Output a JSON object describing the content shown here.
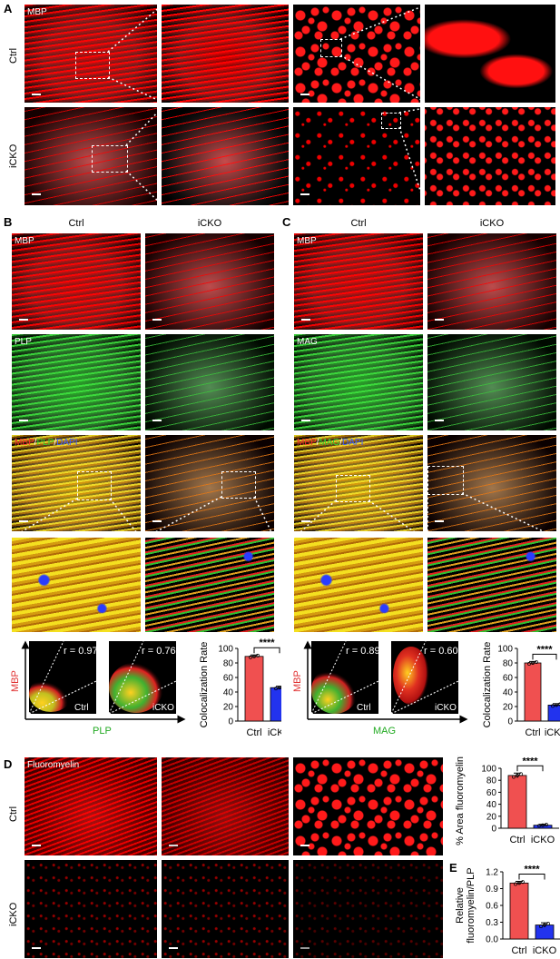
{
  "panels": {
    "A": {
      "letter": "A",
      "stain": "MBP",
      "rows": [
        "Ctrl",
        "iCKO"
      ]
    },
    "B": {
      "letter": "B",
      "cols": [
        "Ctrl",
        "iCKO"
      ],
      "stains": [
        "MBP",
        "PLP"
      ],
      "merge": {
        "m1": "MBP",
        "s1": "/",
        "m2": "PLP",
        "s2": "/",
        "m3": "DAPI"
      },
      "scatter": {
        "r_ctrl": "r = 0.97",
        "r_icko": "r = 0.76",
        "ctrl": "Ctrl",
        "icko": "iCKO",
        "ylabel": "MBP",
        "xlabel": "PLP"
      }
    },
    "C": {
      "letter": "C",
      "cols": [
        "Ctrl",
        "iCKO"
      ],
      "stains": [
        "MBP",
        "MAG"
      ],
      "merge": {
        "m1": "MBP",
        "s1": "/",
        "m2": "MAG",
        "s2": "/",
        "m3": "DAPI"
      },
      "scatter": {
        "r_ctrl": "r = 0.89",
        "r_icko": "r = 0.60",
        "ctrl": "Ctrl",
        "icko": "iCKO",
        "ylabel": "MBP",
        "xlabel": "MAG"
      }
    },
    "D": {
      "letter": "D",
      "stain": "Fluoromyelin",
      "rows": [
        "Ctrl",
        "iCKO"
      ]
    },
    "E": {
      "letter": "E"
    }
  },
  "colors": {
    "ctrl": "#f05050",
    "icko": "#2233ee",
    "mbp": "#e03030",
    "plp": "#22aa22",
    "dapi": "#2233ee"
  },
  "chart_data": [
    {
      "id": "B-chart",
      "type": "bar",
      "categories": [
        "Ctrl",
        "iCKO"
      ],
      "values": [
        89,
        46
      ],
      "errors": [
        2,
        2
      ],
      "ylabel": "Colocalization Rate",
      "ylim": [
        0,
        100
      ],
      "yticks": [
        0,
        20,
        40,
        60,
        80,
        100
      ],
      "significance": "****"
    },
    {
      "id": "C-chart",
      "type": "bar",
      "categories": [
        "Ctrl",
        "iCKO"
      ],
      "values": [
        80,
        22
      ],
      "errors": [
        2,
        2
      ],
      "ylabel": "Colocalization Rate",
      "ylim": [
        0,
        100
      ],
      "yticks": [
        0,
        20,
        40,
        60,
        80,
        100
      ],
      "significance": "****"
    },
    {
      "id": "D-chart",
      "type": "bar",
      "categories": [
        "Ctrl",
        "iCKO"
      ],
      "values": [
        88,
        5
      ],
      "errors": [
        4,
        1.5
      ],
      "ylabel": "% Area fluoromyelin⁺",
      "ylim": [
        0,
        100
      ],
      "yticks": [
        0,
        20,
        40,
        60,
        80,
        100
      ],
      "significance": "****"
    },
    {
      "id": "E-chart",
      "type": "bar",
      "categories": [
        "Ctrl",
        "iCKO"
      ],
      "values": [
        1.0,
        0.25
      ],
      "errors": [
        0.03,
        0.04
      ],
      "ylabel_line1": "Relative",
      "ylabel_line2": "fluoromyelin/PLP",
      "ylim": [
        0,
        1.2
      ],
      "yticks": [
        0.0,
        0.3,
        0.6,
        0.9,
        1.2
      ],
      "significance": "****"
    }
  ]
}
